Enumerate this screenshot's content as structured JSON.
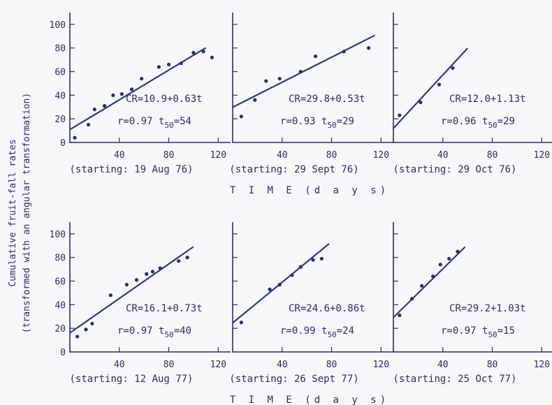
{
  "ylabel_line1": "Cumulative fruit-fall rates",
  "ylabel_line2": "(transformed with an angular transformation)",
  "xlabel": "T I M E (d a y s)",
  "chart_data": [
    {
      "type": "scatter",
      "row": 0,
      "col": 0,
      "caption": "(starting: 19 Aug 76)",
      "equation": "CR=10.9+0.63t",
      "r_text": "r=0.97 t",
      "t50_sub": "50",
      "t50_val": "=54",
      "intercept": 10.9,
      "slope": 0.63,
      "fit_range": [
        0,
        110
      ],
      "xlim": [
        0,
        130
      ],
      "ylim": [
        0,
        110
      ],
      "xticks": [
        40,
        80,
        120
      ],
      "yticks": [
        0,
        20,
        40,
        60,
        80,
        100
      ],
      "show_yticklabels": true,
      "x": [
        4,
        15,
        20,
        28,
        35,
        42,
        50,
        58,
        72,
        80,
        90,
        100,
        108,
        115
      ],
      "y": [
        4,
        15,
        28,
        31,
        40,
        41,
        45,
        54,
        64,
        66,
        67,
        76,
        77,
        72
      ]
    },
    {
      "type": "scatter",
      "row": 0,
      "col": 1,
      "caption": "(starting: 29 Sept 76)",
      "equation": "CR=29.8+0.53t",
      "r_text": "r=0.93 t",
      "t50_sub": "50",
      "t50_val": "=29",
      "intercept": 29.8,
      "slope": 0.53,
      "fit_range": [
        0,
        115
      ],
      "xlim": [
        0,
        130
      ],
      "ylim": [
        0,
        110
      ],
      "xticks": [
        40,
        80,
        120
      ],
      "yticks": [
        0,
        20,
        40,
        60,
        80,
        100
      ],
      "show_yticklabels": false,
      "x": [
        7,
        18,
        27,
        38,
        55,
        67,
        90,
        110
      ],
      "y": [
        22,
        36,
        52,
        54,
        60,
        73,
        77,
        80
      ]
    },
    {
      "type": "scatter",
      "row": 0,
      "col": 2,
      "caption": "(starting: 29 Oct 76)",
      "equation": "CR=12.0+1.13t",
      "r_text": "r=0.96 t",
      "t50_sub": "50",
      "t50_val": "=29",
      "intercept": 12.0,
      "slope": 1.13,
      "fit_range": [
        0,
        60
      ],
      "xlim": [
        0,
        130
      ],
      "ylim": [
        0,
        110
      ],
      "xticks": [
        40,
        80,
        120
      ],
      "yticks": [
        0,
        20,
        40,
        60,
        80,
        100
      ],
      "show_yticklabels": false,
      "x": [
        5,
        22,
        37,
        48
      ],
      "y": [
        23,
        34,
        49,
        63
      ]
    },
    {
      "type": "scatter",
      "row": 1,
      "col": 0,
      "caption": "(starting: 12 Aug 77)",
      "equation": "CR=16.1+0.73t",
      "r_text": "r=0.97 t",
      "t50_sub": "50",
      "t50_val": "=40",
      "intercept": 16.1,
      "slope": 0.73,
      "fit_range": [
        0,
        100
      ],
      "xlim": [
        0,
        130
      ],
      "ylim": [
        0,
        110
      ],
      "xticks": [
        40,
        80,
        120
      ],
      "yticks": [
        0,
        20,
        40,
        60,
        80,
        100
      ],
      "show_yticklabels": true,
      "x": [
        6,
        13,
        18,
        33,
        46,
        54,
        62,
        67,
        73,
        88,
        95
      ],
      "y": [
        13,
        19,
        24,
        48,
        57,
        61,
        66,
        68,
        71,
        77,
        80
      ]
    },
    {
      "type": "scatter",
      "row": 1,
      "col": 1,
      "caption": "(starting: 26 Sept 77)",
      "equation": "CR=24.6+0.86t",
      "r_text": "r=0.99 t",
      "t50_sub": "50",
      "t50_val": "=24",
      "intercept": 24.6,
      "slope": 0.86,
      "fit_range": [
        0,
        78
      ],
      "xlim": [
        0,
        130
      ],
      "ylim": [
        0,
        110
      ],
      "xticks": [
        40,
        80,
        120
      ],
      "yticks": [
        0,
        20,
        40,
        60,
        80,
        100
      ],
      "show_yticklabels": false,
      "x": [
        7,
        30,
        38,
        48,
        55,
        65,
        72
      ],
      "y": [
        25,
        53,
        57,
        65,
        72,
        78,
        79
      ]
    },
    {
      "type": "scatter",
      "row": 1,
      "col": 2,
      "caption": "(starting: 25 Oct 77)",
      "equation": "CR=29.2+1.03t",
      "r_text": "r=0.97 t",
      "t50_sub": "50",
      "t50_val": "=15",
      "intercept": 29.2,
      "slope": 1.03,
      "fit_range": [
        0,
        58
      ],
      "xlim": [
        0,
        130
      ],
      "ylim": [
        0,
        110
      ],
      "xticks": [
        40,
        80,
        120
      ],
      "yticks": [
        0,
        20,
        40,
        60,
        80,
        100
      ],
      "show_yticklabels": false,
      "x": [
        5,
        15,
        23,
        32,
        38,
        45,
        52
      ],
      "y": [
        31,
        45,
        56,
        64,
        74,
        79,
        85
      ]
    }
  ]
}
